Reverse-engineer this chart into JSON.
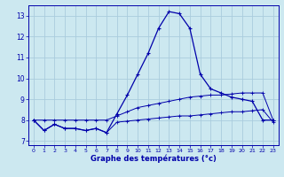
{
  "xlabel": "Graphe des températures (°c)",
  "bg_color": "#cce8f0",
  "grid_color": "#aaccdd",
  "line_color": "#0000aa",
  "xlim": [
    -0.5,
    23.5
  ],
  "ylim": [
    6.8,
    13.5
  ],
  "yticks": [
    7,
    8,
    9,
    10,
    11,
    12,
    13
  ],
  "xticks": [
    0,
    1,
    2,
    3,
    4,
    5,
    6,
    7,
    8,
    9,
    10,
    11,
    12,
    13,
    14,
    15,
    16,
    17,
    18,
    19,
    20,
    21,
    22,
    23
  ],
  "temp_curve": [
    8.0,
    7.5,
    7.8,
    7.6,
    7.6,
    7.5,
    7.6,
    7.4,
    8.3,
    9.2,
    10.2,
    11.2,
    12.4,
    13.2,
    13.1,
    12.4,
    10.2,
    9.5,
    9.3,
    9.1,
    9.0,
    8.9,
    8.0,
    8.0
  ],
  "min_curve": [
    8.0,
    7.5,
    7.8,
    7.6,
    7.6,
    7.5,
    7.6,
    7.4,
    7.9,
    7.95,
    8.0,
    8.05,
    8.1,
    8.15,
    8.2,
    8.2,
    8.25,
    8.3,
    8.35,
    8.4,
    8.4,
    8.45,
    8.5,
    7.9
  ],
  "max_curve": [
    8.0,
    8.0,
    8.0,
    8.0,
    8.0,
    8.0,
    8.0,
    8.0,
    8.2,
    8.4,
    8.6,
    8.7,
    8.8,
    8.9,
    9.0,
    9.1,
    9.15,
    9.2,
    9.2,
    9.25,
    9.3,
    9.3,
    9.3,
    8.0
  ]
}
